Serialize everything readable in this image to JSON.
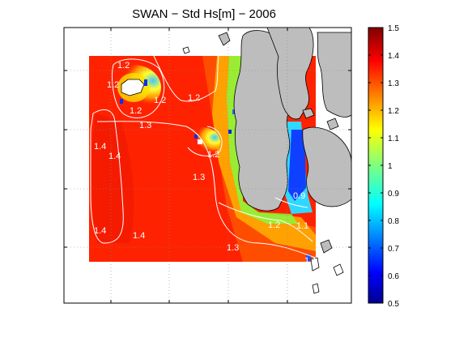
{
  "chart_data": {
    "type": "heatmap",
    "title": "SWAN − Std Hs[m] − 2006",
    "colorbar": {
      "min": 0.5,
      "max": 1.5,
      "ticks": [
        "1.5",
        "1.4",
        "1.3",
        "1.2",
        "1.1",
        "1",
        "0.9",
        "0.8",
        "0.7",
        "0.6",
        "0.5"
      ],
      "colormap": "jet"
    },
    "contour_labels": [
      "1.2",
      "1.2",
      "1.2",
      "1.2",
      "1.3",
      "1.4",
      "1.4",
      "1.2",
      "1.3",
      "1.4",
      "1.4",
      "1.2",
      "1.3",
      "1.1",
      "1.1",
      "0.9"
    ],
    "land_color": "#bdbdbd",
    "grid": true
  }
}
